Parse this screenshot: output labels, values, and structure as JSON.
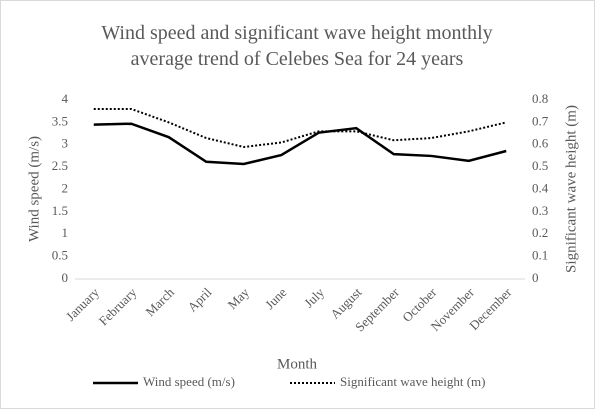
{
  "chart_data": {
    "type": "line",
    "title": "Wind speed and significant wave height monthly average trend of Celebes Sea for 24 years",
    "xlabel": "Month",
    "ylabel": "Wind speed (m/s)",
    "y2label": "Significant wave height (m)",
    "categories": [
      "January",
      "February",
      "March",
      "April",
      "May",
      "June",
      "July",
      "August",
      "September",
      "October",
      "November",
      "December"
    ],
    "series": [
      {
        "name": "Wind speed (m/s)",
        "color": "#000000",
        "style": "solid",
        "values": [
          3.45,
          3.47,
          3.17,
          2.62,
          2.57,
          2.77,
          3.27,
          3.37,
          2.79,
          2.75,
          2.64,
          2.86
        ]
      },
      {
        "name": "Significant wave height (m)",
        "color": "#000000",
        "style": "dotted",
        "axis": "y2",
        "values": [
          0.76,
          0.76,
          0.7,
          0.63,
          0.59,
          0.61,
          0.66,
          0.66,
          0.62,
          0.63,
          0.66,
          0.7
        ]
      }
    ],
    "ylim": [
      0,
      4
    ],
    "yticks": [
      0,
      0.5,
      1,
      1.5,
      2,
      2.5,
      3,
      3.5,
      4
    ],
    "y2lim": [
      0,
      0.8
    ],
    "y2ticks": [
      0,
      0.1,
      0.2,
      0.3,
      0.4,
      0.5,
      0.6,
      0.7,
      0.8
    ],
    "grid": false,
    "legend": "bottom"
  }
}
